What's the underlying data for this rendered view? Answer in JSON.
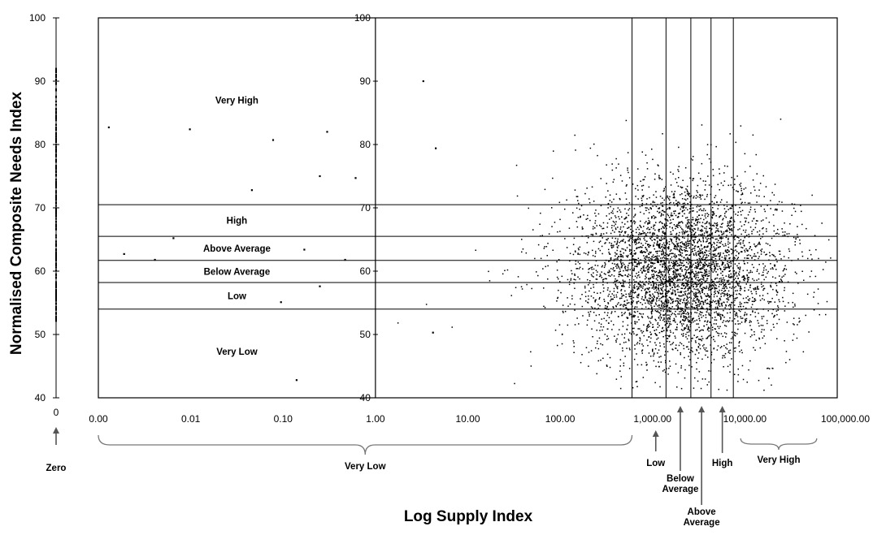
{
  "chart_data": {
    "type": "scatter",
    "title": "",
    "xlabel": "Log Supply Index",
    "ylabel": "Normalised Composite Needs Index",
    "x_scale": "log",
    "xlim": [
      0.001,
      100000
    ],
    "ylim": [
      40,
      100
    ],
    "grid": false,
    "legend": "none",
    "x_ticks": [
      "0.00",
      "0.01",
      "0.10",
      "1.00",
      "10.00",
      "100.00",
      "1,000.00",
      "10,000.00",
      "100,000.00"
    ],
    "y_ticks": [
      "40",
      "50",
      "60",
      "70",
      "80",
      "90",
      "100"
    ],
    "zero_axis_label": "0",
    "need_bands": [
      {
        "label": "Very High",
        "from": 70.5,
        "to": 100
      },
      {
        "label": "High",
        "from": 65.5,
        "to": 70.5
      },
      {
        "label": "Above Average",
        "from": 61.7,
        "to": 65.5
      },
      {
        "label": "Below Average",
        "from": 58.2,
        "to": 61.7
      },
      {
        "label": "Low",
        "from": 54.0,
        "to": 58.2
      },
      {
        "label": "Very Low",
        "from": 40,
        "to": 54.0
      }
    ],
    "supply_thresholds": [
      600,
      1400,
      2600,
      4300,
      7500
    ],
    "supply_bands": [
      {
        "label": "Zero",
        "at": 0
      },
      {
        "label": "Very Low",
        "from": 0.001,
        "to": 600
      },
      {
        "label": "Low",
        "at": 1000
      },
      {
        "label": "Below Average",
        "at": 2000
      },
      {
        "label": "Above Average",
        "at": 3400
      },
      {
        "label": "High",
        "at": 5700
      },
      {
        "label": "Very High",
        "from": 9000,
        "to": 60000
      }
    ],
    "zero_supply_points_y_range": [
      52,
      92
    ],
    "notable_points": [
      {
        "x": 0.0013,
        "y": 82.7
      },
      {
        "x": 0.0098,
        "y": 82.4
      },
      {
        "x": 0.078,
        "y": 80.7
      },
      {
        "x": 0.3,
        "y": 82.0
      },
      {
        "x": 0.25,
        "y": 75.0
      },
      {
        "x": 0.046,
        "y": 72.8
      },
      {
        "x": 0.61,
        "y": 74.7
      },
      {
        "x": 0.0019,
        "y": 62.7
      },
      {
        "x": 0.0041,
        "y": 61.8
      },
      {
        "x": 0.0065,
        "y": 65.2
      },
      {
        "x": 0.17,
        "y": 63.4
      },
      {
        "x": 0.25,
        "y": 57.6
      },
      {
        "x": 0.095,
        "y": 55.1
      },
      {
        "x": 0.14,
        "y": 42.8
      },
      {
        "x": 0.47,
        "y": 61.8
      },
      {
        "x": 3.3,
        "y": 90.0
      },
      {
        "x": 4.5,
        "y": 79.4
      },
      {
        "x": 4.2,
        "y": 50.3
      }
    ],
    "main_cluster": {
      "count": 4500,
      "x_center": 2000,
      "x_spread_log10": 0.55,
      "y_center": 60,
      "y_spread": 7
    }
  }
}
